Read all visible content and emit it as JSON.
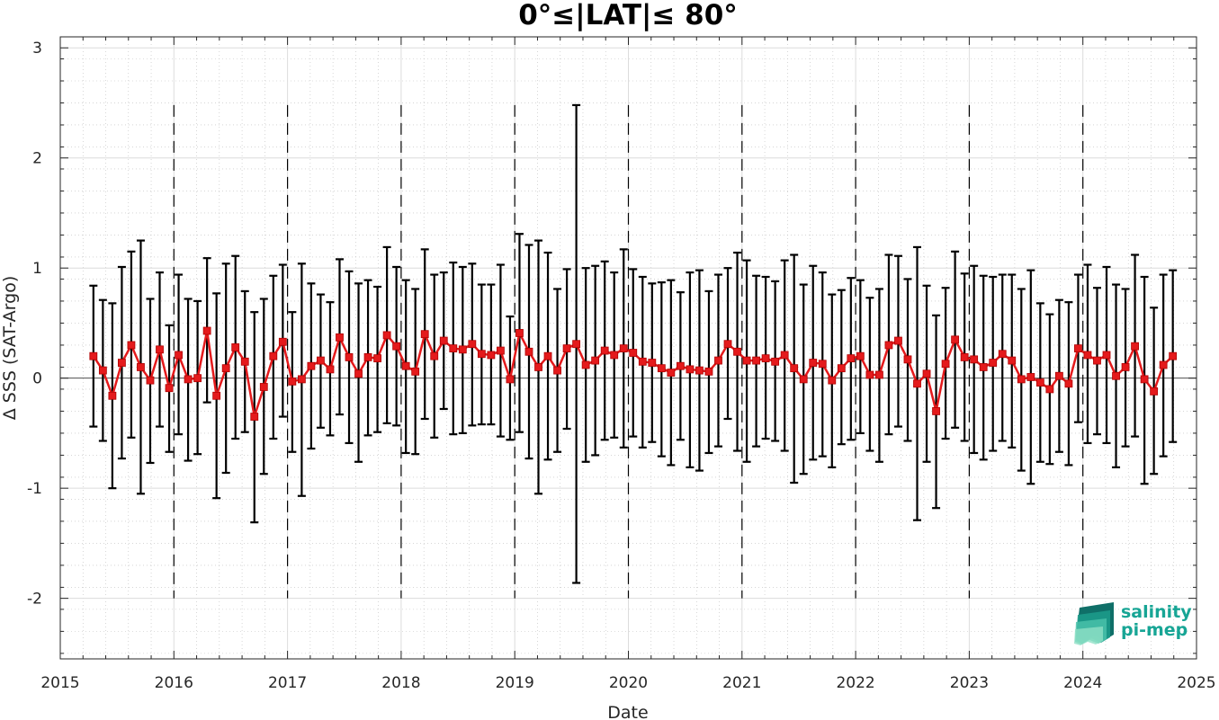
{
  "chart_data": {
    "type": "line",
    "title": "0°≤|LAT|≤ 80°",
    "xlabel": "Date",
    "ylabel": "Δ SSS (SAT-Argo)",
    "xlim": [
      2015,
      2025
    ],
    "ylim": [
      -2.55,
      3.1
    ],
    "x_ticks": [
      "2015",
      "2016",
      "2017",
      "2018",
      "2019",
      "2020",
      "2021",
      "2022",
      "2023",
      "2024",
      "2025"
    ],
    "y_ticks": [
      "-2",
      "-1",
      "0",
      "1",
      "2",
      "3"
    ],
    "grid": true,
    "minor_grid": true,
    "year_separators": [
      "2016",
      "2017",
      "2018",
      "2019",
      "2020",
      "2021",
      "2022",
      "2023",
      "2024"
    ],
    "series": [
      {
        "color": "#e41a1c",
        "errorbar_color": "#000000",
        "points": [
          {
            "x": "2015-04",
            "y": 0.2,
            "lo": -0.44,
            "hi": 0.84
          },
          {
            "x": "2015-05",
            "y": 0.07,
            "lo": -0.57,
            "hi": 0.71
          },
          {
            "x": "2015-06",
            "y": -0.16,
            "lo": -1.0,
            "hi": 0.68
          },
          {
            "x": "2015-07",
            "y": 0.14,
            "lo": -0.73,
            "hi": 1.01
          },
          {
            "x": "2015-08",
            "y": 0.3,
            "lo": -0.54,
            "hi": 1.15
          },
          {
            "x": "2015-09",
            "y": 0.1,
            "lo": -1.05,
            "hi": 1.25
          },
          {
            "x": "2015-10",
            "y": -0.02,
            "lo": -0.77,
            "hi": 0.72
          },
          {
            "x": "2015-11",
            "y": 0.26,
            "lo": -0.44,
            "hi": 0.96
          },
          {
            "x": "2015-12",
            "y": -0.09,
            "lo": -0.67,
            "hi": 0.48
          },
          {
            "x": "2016-01",
            "y": 0.21,
            "lo": -0.51,
            "hi": 0.94
          },
          {
            "x": "2016-02",
            "y": -0.01,
            "lo": -0.75,
            "hi": 0.72
          },
          {
            "x": "2016-03",
            "y": 0.0,
            "lo": -0.69,
            "hi": 0.7
          },
          {
            "x": "2016-04",
            "y": 0.43,
            "lo": -0.22,
            "hi": 1.09
          },
          {
            "x": "2016-05",
            "y": -0.16,
            "lo": -1.09,
            "hi": 0.77
          },
          {
            "x": "2016-06",
            "y": 0.09,
            "lo": -0.86,
            "hi": 1.04
          },
          {
            "x": "2016-07",
            "y": 0.28,
            "lo": -0.55,
            "hi": 1.11
          },
          {
            "x": "2016-08",
            "y": 0.15,
            "lo": -0.49,
            "hi": 0.79
          },
          {
            "x": "2016-09",
            "y": -0.35,
            "lo": -1.31,
            "hi": 0.6
          },
          {
            "x": "2016-10",
            "y": -0.08,
            "lo": -0.87,
            "hi": 0.72
          },
          {
            "x": "2016-11",
            "y": 0.2,
            "lo": -0.55,
            "hi": 0.93
          },
          {
            "x": "2016-12",
            "y": 0.33,
            "lo": -0.35,
            "hi": 1.03
          },
          {
            "x": "2017-01",
            "y": -0.03,
            "lo": -0.67,
            "hi": 0.6
          },
          {
            "x": "2017-02",
            "y": -0.01,
            "lo": -1.07,
            "hi": 1.04
          },
          {
            "x": "2017-03",
            "y": 0.11,
            "lo": -0.64,
            "hi": 0.86
          },
          {
            "x": "2017-04",
            "y": 0.16,
            "lo": -0.45,
            "hi": 0.76
          },
          {
            "x": "2017-05",
            "y": 0.08,
            "lo": -0.52,
            "hi": 0.69
          },
          {
            "x": "2017-06",
            "y": 0.37,
            "lo": -0.33,
            "hi": 1.08
          },
          {
            "x": "2017-07",
            "y": 0.19,
            "lo": -0.59,
            "hi": 0.97
          },
          {
            "x": "2017-08",
            "y": 0.04,
            "lo": -0.76,
            "hi": 0.86
          },
          {
            "x": "2017-09",
            "y": 0.19,
            "lo": -0.52,
            "hi": 0.89
          },
          {
            "x": "2017-10",
            "y": 0.18,
            "lo": -0.49,
            "hi": 0.83
          },
          {
            "x": "2017-11",
            "y": 0.39,
            "lo": -0.41,
            "hi": 1.19
          },
          {
            "x": "2017-12",
            "y": 0.29,
            "lo": -0.43,
            "hi": 1.01
          },
          {
            "x": "2018-01",
            "y": 0.11,
            "lo": -0.68,
            "hi": 0.89
          },
          {
            "x": "2018-02",
            "y": 0.06,
            "lo": -0.69,
            "hi": 0.81
          },
          {
            "x": "2018-03",
            "y": 0.4,
            "lo": -0.37,
            "hi": 1.17
          },
          {
            "x": "2018-04",
            "y": 0.2,
            "lo": -0.54,
            "hi": 0.94
          },
          {
            "x": "2018-05",
            "y": 0.34,
            "lo": -0.28,
            "hi": 0.96
          },
          {
            "x": "2018-06",
            "y": 0.27,
            "lo": -0.51,
            "hi": 1.05
          },
          {
            "x": "2018-07",
            "y": 0.26,
            "lo": -0.5,
            "hi": 1.01
          },
          {
            "x": "2018-08",
            "y": 0.31,
            "lo": -0.43,
            "hi": 1.04
          },
          {
            "x": "2018-09",
            "y": 0.22,
            "lo": -0.42,
            "hi": 0.85
          },
          {
            "x": "2018-10",
            "y": 0.21,
            "lo": -0.42,
            "hi": 0.85
          },
          {
            "x": "2018-11",
            "y": 0.25,
            "lo": -0.53,
            "hi": 1.03
          },
          {
            "x": "2018-12",
            "y": -0.01,
            "lo": -0.56,
            "hi": 0.56
          },
          {
            "x": "2019-01",
            "y": 0.41,
            "lo": -0.49,
            "hi": 1.31
          },
          {
            "x": "2019-02",
            "y": 0.24,
            "lo": -0.73,
            "hi": 1.21
          },
          {
            "x": "2019-03",
            "y": 0.1,
            "lo": -1.05,
            "hi": 1.25
          },
          {
            "x": "2019-04",
            "y": 0.2,
            "lo": -0.74,
            "hi": 1.14
          },
          {
            "x": "2019-05",
            "y": 0.07,
            "lo": -0.67,
            "hi": 0.81
          },
          {
            "x": "2019-06",
            "y": 0.27,
            "lo": -0.46,
            "hi": 0.99
          },
          {
            "x": "2019-07",
            "y": 0.31,
            "lo": -1.86,
            "hi": 2.48
          },
          {
            "x": "2019-08",
            "y": 0.12,
            "lo": -0.76,
            "hi": 1.0
          },
          {
            "x": "2019-09",
            "y": 0.16,
            "lo": -0.7,
            "hi": 1.02
          },
          {
            "x": "2019-10",
            "y": 0.25,
            "lo": -0.56,
            "hi": 1.06
          },
          {
            "x": "2019-11",
            "y": 0.21,
            "lo": -0.54,
            "hi": 0.96
          },
          {
            "x": "2019-12",
            "y": 0.27,
            "lo": -0.63,
            "hi": 1.17
          },
          {
            "x": "2020-01",
            "y": 0.23,
            "lo": -0.53,
            "hi": 0.99
          },
          {
            "x": "2020-02",
            "y": 0.15,
            "lo": -0.63,
            "hi": 0.92
          },
          {
            "x": "2020-03",
            "y": 0.14,
            "lo": -0.58,
            "hi": 0.86
          },
          {
            "x": "2020-04",
            "y": 0.09,
            "lo": -0.71,
            "hi": 0.87
          },
          {
            "x": "2020-05",
            "y": 0.05,
            "lo": -0.79,
            "hi": 0.89
          },
          {
            "x": "2020-06",
            "y": 0.11,
            "lo": -0.56,
            "hi": 0.78
          },
          {
            "x": "2020-07",
            "y": 0.08,
            "lo": -0.81,
            "hi": 0.96
          },
          {
            "x": "2020-08",
            "y": 0.07,
            "lo": -0.84,
            "hi": 0.98
          },
          {
            "x": "2020-09",
            "y": 0.06,
            "lo": -0.68,
            "hi": 0.79
          },
          {
            "x": "2020-10",
            "y": 0.16,
            "lo": -0.62,
            "hi": 0.94
          },
          {
            "x": "2020-11",
            "y": 0.31,
            "lo": -0.37,
            "hi": 1.0
          },
          {
            "x": "2020-12",
            "y": 0.24,
            "lo": -0.66,
            "hi": 1.14
          },
          {
            "x": "2021-01",
            "y": 0.16,
            "lo": -0.76,
            "hi": 1.07
          },
          {
            "x": "2021-02",
            "y": 0.16,
            "lo": -0.62,
            "hi": 0.93
          },
          {
            "x": "2021-03",
            "y": 0.18,
            "lo": -0.55,
            "hi": 0.92
          },
          {
            "x": "2021-04",
            "y": 0.15,
            "lo": -0.57,
            "hi": 0.88
          },
          {
            "x": "2021-05",
            "y": 0.21,
            "lo": -0.66,
            "hi": 1.07
          },
          {
            "x": "2021-06",
            "y": 0.09,
            "lo": -0.95,
            "hi": 1.12
          },
          {
            "x": "2021-07",
            "y": -0.01,
            "lo": -0.87,
            "hi": 0.85
          },
          {
            "x": "2021-08",
            "y": 0.14,
            "lo": -0.74,
            "hi": 1.02
          },
          {
            "x": "2021-09",
            "y": 0.13,
            "lo": -0.71,
            "hi": 0.96
          },
          {
            "x": "2021-10",
            "y": -0.02,
            "lo": -0.81,
            "hi": 0.76
          },
          {
            "x": "2021-11",
            "y": 0.09,
            "lo": -0.6,
            "hi": 0.8
          },
          {
            "x": "2021-12",
            "y": 0.18,
            "lo": -0.56,
            "hi": 0.91
          },
          {
            "x": "2022-01",
            "y": 0.2,
            "lo": -0.5,
            "hi": 0.89
          },
          {
            "x": "2022-02",
            "y": 0.03,
            "lo": -0.66,
            "hi": 0.73
          },
          {
            "x": "2022-03",
            "y": 0.03,
            "lo": -0.76,
            "hi": 0.81
          },
          {
            "x": "2022-04",
            "y": 0.3,
            "lo": -0.51,
            "hi": 1.12
          },
          {
            "x": "2022-05",
            "y": 0.34,
            "lo": -0.44,
            "hi": 1.11
          },
          {
            "x": "2022-06",
            "y": 0.17,
            "lo": -0.57,
            "hi": 0.9
          },
          {
            "x": "2022-07",
            "y": -0.05,
            "lo": -1.29,
            "hi": 1.19
          },
          {
            "x": "2022-08",
            "y": 0.04,
            "lo": -0.76,
            "hi": 0.84
          },
          {
            "x": "2022-09",
            "y": -0.3,
            "lo": -1.18,
            "hi": 0.57
          },
          {
            "x": "2022-10",
            "y": 0.13,
            "lo": -0.55,
            "hi": 0.82
          },
          {
            "x": "2022-11",
            "y": 0.35,
            "lo": -0.45,
            "hi": 1.15
          },
          {
            "x": "2022-12",
            "y": 0.19,
            "lo": -0.57,
            "hi": 0.95
          },
          {
            "x": "2023-01",
            "y": 0.17,
            "lo": -0.68,
            "hi": 1.02
          },
          {
            "x": "2023-02",
            "y": 0.1,
            "lo": -0.74,
            "hi": 0.93
          },
          {
            "x": "2023-03",
            "y": 0.14,
            "lo": -0.66,
            "hi": 0.92
          },
          {
            "x": "2023-04",
            "y": 0.22,
            "lo": -0.57,
            "hi": 0.94
          },
          {
            "x": "2023-05",
            "y": 0.16,
            "lo": -0.63,
            "hi": 0.94
          },
          {
            "x": "2023-06",
            "y": -0.01,
            "lo": -0.84,
            "hi": 0.81
          },
          {
            "x": "2023-07",
            "y": 0.01,
            "lo": -0.96,
            "hi": 0.98
          },
          {
            "x": "2023-08",
            "y": -0.04,
            "lo": -0.76,
            "hi": 0.68
          },
          {
            "x": "2023-09",
            "y": -0.1,
            "lo": -0.78,
            "hi": 0.58
          },
          {
            "x": "2023-10",
            "y": 0.02,
            "lo": -0.67,
            "hi": 0.71
          },
          {
            "x": "2023-11",
            "y": -0.05,
            "lo": -0.79,
            "hi": 0.69
          },
          {
            "x": "2023-12",
            "y": 0.27,
            "lo": -0.4,
            "hi": 0.94
          },
          {
            "x": "2024-01",
            "y": 0.21,
            "lo": -0.59,
            "hi": 1.03
          },
          {
            "x": "2024-02",
            "y": 0.16,
            "lo": -0.51,
            "hi": 0.82
          },
          {
            "x": "2024-03",
            "y": 0.21,
            "lo": -0.59,
            "hi": 1.01
          },
          {
            "x": "2024-04",
            "y": 0.02,
            "lo": -0.81,
            "hi": 0.85
          },
          {
            "x": "2024-05",
            "y": 0.1,
            "lo": -0.62,
            "hi": 0.81
          },
          {
            "x": "2024-06",
            "y": 0.29,
            "lo": -0.53,
            "hi": 1.12
          },
          {
            "x": "2024-07",
            "y": -0.01,
            "lo": -0.96,
            "hi": 0.92
          },
          {
            "x": "2024-08",
            "y": -0.12,
            "lo": -0.87,
            "hi": 0.64
          },
          {
            "x": "2024-09",
            "y": 0.12,
            "lo": -0.71,
            "hi": 0.94
          },
          {
            "x": "2024-10",
            "y": 0.2,
            "lo": -0.58,
            "hi": 0.98
          }
        ]
      }
    ]
  },
  "logo": {
    "line1": "salinity",
    "line2": "pi-mep",
    "color": "#17a595"
  }
}
